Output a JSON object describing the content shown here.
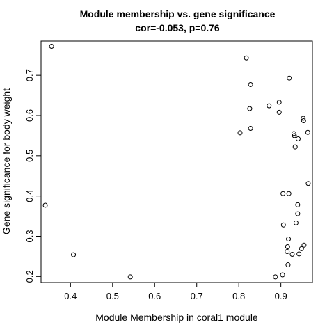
{
  "chart_data": {
    "type": "scatter",
    "title": "Module membership vs. gene significance",
    "subtitle": "cor=-0.053, p=0.76",
    "xlabel": "Module Membership in coral1 module",
    "ylabel": "Gene significance for body weight",
    "xlim": [
      0.33,
      0.975
    ],
    "ylim": [
      0.185,
      0.785
    ],
    "xticks": [
      0.4,
      0.5,
      0.6,
      0.7,
      0.8,
      0.9
    ],
    "yticks": [
      0.2,
      0.3,
      0.4,
      0.5,
      0.6,
      0.7
    ],
    "grid": false,
    "legend": "none",
    "marker": "open-circle",
    "points": [
      {
        "x": 0.355,
        "y": 0.772
      },
      {
        "x": 0.34,
        "y": 0.377
      },
      {
        "x": 0.407,
        "y": 0.254
      },
      {
        "x": 0.542,
        "y": 0.199
      },
      {
        "x": 0.818,
        "y": 0.743
      },
      {
        "x": 0.828,
        "y": 0.677
      },
      {
        "x": 0.92,
        "y": 0.693
      },
      {
        "x": 0.896,
        "y": 0.633
      },
      {
        "x": 0.872,
        "y": 0.624
      },
      {
        "x": 0.826,
        "y": 0.617
      },
      {
        "x": 0.896,
        "y": 0.608
      },
      {
        "x": 0.953,
        "y": 0.593
      },
      {
        "x": 0.954,
        "y": 0.587
      },
      {
        "x": 0.828,
        "y": 0.568
      },
      {
        "x": 0.803,
        "y": 0.557
      },
      {
        "x": 0.964,
        "y": 0.558
      },
      {
        "x": 0.931,
        "y": 0.555
      },
      {
        "x": 0.932,
        "y": 0.55
      },
      {
        "x": 0.941,
        "y": 0.542
      },
      {
        "x": 0.934,
        "y": 0.522
      },
      {
        "x": 0.965,
        "y": 0.431
      },
      {
        "x": 0.905,
        "y": 0.406
      },
      {
        "x": 0.919,
        "y": 0.406
      },
      {
        "x": 0.94,
        "y": 0.378
      },
      {
        "x": 0.94,
        "y": 0.356
      },
      {
        "x": 0.936,
        "y": 0.333
      },
      {
        "x": 0.906,
        "y": 0.328
      },
      {
        "x": 0.918,
        "y": 0.293
      },
      {
        "x": 0.955,
        "y": 0.278
      },
      {
        "x": 0.916,
        "y": 0.274
      },
      {
        "x": 0.949,
        "y": 0.269
      },
      {
        "x": 0.915,
        "y": 0.262
      },
      {
        "x": 0.927,
        "y": 0.255
      },
      {
        "x": 0.943,
        "y": 0.256
      },
      {
        "x": 0.917,
        "y": 0.229
      },
      {
        "x": 0.904,
        "y": 0.204
      },
      {
        "x": 0.887,
        "y": 0.199
      }
    ]
  }
}
